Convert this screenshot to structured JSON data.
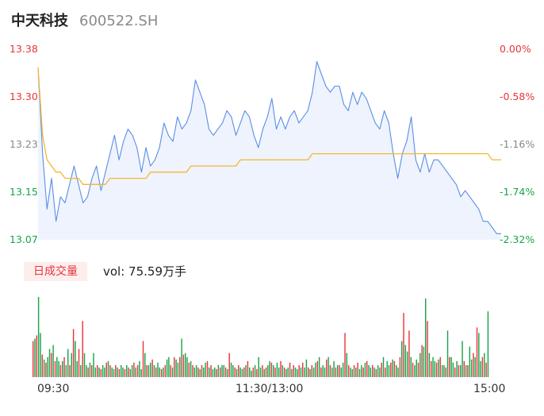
{
  "header": {
    "stock_name": "中天科技",
    "stock_code": "600522.SH"
  },
  "volume_panel": {
    "tab_label": "日成交量",
    "vol_text": "vol: 75.59万手"
  },
  "colors": {
    "up": "#e8353a",
    "down": "#19a34a",
    "price_line": "#5b8ee6",
    "avg_line": "#f5b731",
    "fill": "#eef3fd",
    "neutral": "#888888"
  },
  "chart_data": {
    "type": "line",
    "price_axis": {
      "labels": [
        "13.38",
        "13.30",
        "13.23",
        "13.15",
        "13.07"
      ],
      "values": [
        13.38,
        13.3,
        13.23,
        13.15,
        13.07
      ],
      "ylim": [
        13.07,
        13.38
      ]
    },
    "pct_axis": {
      "labels": [
        "0.00%",
        "-0.58%",
        "-1.16%",
        "-1.74%",
        "-2.32%"
      ]
    },
    "x_ticks": [
      "09:30",
      "11:30/13:00",
      "15:00"
    ],
    "series": [
      {
        "kind": "price",
        "values": [
          13.35,
          13.21,
          13.12,
          13.17,
          13.1,
          13.14,
          13.13,
          13.16,
          13.19,
          13.16,
          13.13,
          13.14,
          13.17,
          13.19,
          13.15,
          13.18,
          13.21,
          13.24,
          13.2,
          13.23,
          13.25,
          13.24,
          13.22,
          13.18,
          13.22,
          13.19,
          13.2,
          13.22,
          13.26,
          13.24,
          13.23,
          13.27,
          13.25,
          13.26,
          13.28,
          13.33,
          13.31,
          13.29,
          13.25,
          13.24,
          13.25,
          13.26,
          13.28,
          13.27,
          13.24,
          13.26,
          13.28,
          13.27,
          13.24,
          13.22,
          13.25,
          13.27,
          13.3,
          13.25,
          13.27,
          13.25,
          13.27,
          13.28,
          13.26,
          13.27,
          13.28,
          13.31,
          13.36,
          13.34,
          13.32,
          13.31,
          13.32,
          13.32,
          13.29,
          13.28,
          13.31,
          13.29,
          13.31,
          13.3,
          13.28,
          13.26,
          13.25,
          13.28,
          13.26,
          13.21,
          13.17,
          13.21,
          13.23,
          13.27,
          13.2,
          13.18,
          13.21,
          13.18,
          13.2,
          13.2,
          13.19,
          13.18,
          13.17,
          13.16,
          13.14,
          13.15,
          13.14,
          13.13,
          13.12,
          13.1,
          13.1,
          13.09,
          13.08,
          13.08
        ]
      },
      {
        "kind": "avg",
        "values": [
          13.35,
          13.24,
          13.2,
          13.19,
          13.18,
          13.18,
          13.17,
          13.17,
          13.17,
          13.17,
          13.16,
          13.16,
          13.16,
          13.16,
          13.16,
          13.16,
          13.17,
          13.17,
          13.17,
          13.17,
          13.17,
          13.17,
          13.17,
          13.17,
          13.17,
          13.18,
          13.18,
          13.18,
          13.18,
          13.18,
          13.18,
          13.18,
          13.18,
          13.18,
          13.19,
          13.19,
          13.19,
          13.19,
          13.19,
          13.19,
          13.19,
          13.19,
          13.19,
          13.19,
          13.19,
          13.2,
          13.2,
          13.2,
          13.2,
          13.2,
          13.2,
          13.2,
          13.2,
          13.2,
          13.2,
          13.2,
          13.2,
          13.2,
          13.2,
          13.2,
          13.2,
          13.21,
          13.21,
          13.21,
          13.21,
          13.21,
          13.21,
          13.21,
          13.21,
          13.21,
          13.21,
          13.21,
          13.21,
          13.21,
          13.21,
          13.21,
          13.21,
          13.21,
          13.21,
          13.21,
          13.21,
          13.21,
          13.21,
          13.21,
          13.21,
          13.21,
          13.21,
          13.21,
          13.21,
          13.21,
          13.21,
          13.21,
          13.21,
          13.21,
          13.21,
          13.21,
          13.21,
          13.21,
          13.21,
          13.21,
          13.21,
          13.2,
          13.2,
          13.2
        ]
      }
    ],
    "volume": {
      "values": [
        0.45,
        0.48,
        0.52,
        1.0,
        0.55,
        0.28,
        0.22,
        0.18,
        0.25,
        0.35,
        0.3,
        0.4,
        0.2,
        0.25,
        0.2,
        0.15,
        0.2,
        0.25,
        0.15,
        0.35,
        0.15,
        0.3,
        0.6,
        0.45,
        0.2,
        0.35,
        0.15,
        0.7,
        0.3,
        0.15,
        0.12,
        0.18,
        0.15,
        0.3,
        0.12,
        0.15,
        0.12,
        0.1,
        0.15,
        0.12,
        0.18,
        0.2,
        0.15,
        0.12,
        0.1,
        0.15,
        0.12,
        0.1,
        0.15,
        0.12,
        0.1,
        0.15,
        0.12,
        0.1,
        0.15,
        0.18,
        0.12,
        0.15,
        0.2,
        0.1,
        0.45,
        0.3,
        0.15,
        0.15,
        0.18,
        0.22,
        0.15,
        0.12,
        0.18,
        0.12,
        0.1,
        0.12,
        0.15,
        0.22,
        0.25,
        0.15,
        0.12,
        0.25,
        0.22,
        0.18,
        0.25,
        0.48,
        0.28,
        0.3,
        0.25,
        0.18,
        0.2,
        0.15,
        0.12,
        0.15,
        0.12,
        0.1,
        0.15,
        0.12,
        0.18,
        0.2,
        0.12,
        0.15,
        0.1,
        0.12,
        0.1,
        0.15,
        0.12,
        0.15,
        0.15,
        0.12,
        0.1,
        0.3,
        0.18,
        0.15,
        0.12,
        0.1,
        0.15,
        0.12,
        0.1,
        0.12,
        0.15,
        0.2,
        0.12,
        0.08,
        0.12,
        0.15,
        0.1,
        0.25,
        0.12,
        0.15,
        0.1,
        0.12,
        0.15,
        0.2,
        0.18,
        0.15,
        0.12,
        0.18,
        0.12,
        0.2,
        0.15,
        0.12,
        0.1,
        0.12,
        0.18,
        0.1,
        0.15,
        0.12,
        0.1,
        0.15,
        0.12,
        0.18,
        0.12,
        0.22,
        0.12,
        0.1,
        0.15,
        0.12,
        0.18,
        0.2,
        0.25,
        0.12,
        0.15,
        0.12,
        0.22,
        0.25,
        0.15,
        0.12,
        0.2,
        0.12,
        0.15,
        0.15,
        0.12,
        0.18,
        0.55,
        0.3,
        0.15,
        0.12,
        0.1,
        0.15,
        0.12,
        0.18,
        0.1,
        0.15,
        0.12,
        0.18,
        0.2,
        0.15,
        0.12,
        0.15,
        0.12,
        0.1,
        0.15,
        0.12,
        0.18,
        0.25,
        0.12,
        0.2,
        0.15,
        0.18,
        0.22,
        0.2,
        0.15,
        0.12,
        0.25,
        0.45,
        0.8,
        0.4,
        0.32,
        0.58,
        0.25,
        0.18,
        0.15,
        0.22,
        0.18,
        0.3,
        0.4,
        0.38,
        0.98,
        0.7,
        0.3,
        0.2,
        0.25,
        0.2,
        0.18,
        0.22,
        0.25,
        0.15,
        0.15,
        0.12,
        0.58,
        0.25,
        0.25,
        0.18,
        0.12,
        0.2,
        0.15,
        0.15,
        0.45,
        0.2,
        0.15,
        0.15,
        0.38,
        0.22,
        0.3,
        0.25,
        0.62,
        0.55,
        0.2,
        0.25,
        0.3,
        0.18,
        0.82
      ]
    },
    "ylim": [
      13.07,
      13.38
    ]
  }
}
